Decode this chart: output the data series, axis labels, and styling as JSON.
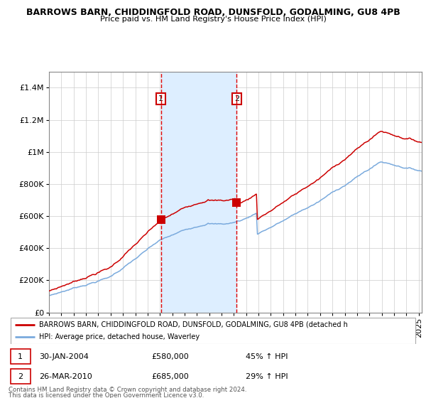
{
  "title": "BARROWS BARN, CHIDDINGFOLD ROAD, DUNSFOLD, GODALMING, GU8 4PB",
  "subtitle": "Price paid vs. HM Land Registry's House Price Index (HPI)",
  "sale1_label": "30-JAN-2004",
  "sale1_price_str": "£580,000",
  "sale1_hpi": "45% ↑ HPI",
  "sale2_label": "26-MAR-2010",
  "sale2_price_str": "£685,000",
  "sale2_hpi": "29% ↑ HPI",
  "legend_red": "BARROWS BARN, CHIDDINGFOLD ROAD, DUNSFOLD, GODALMING, GU8 4PB (detached h",
  "legend_blue": "HPI: Average price, detached house, Waverley",
  "footer1": "Contains HM Land Registry data © Crown copyright and database right 2024.",
  "footer2": "This data is licensed under the Open Government Licence v3.0.",
  "red_color": "#cc0000",
  "blue_color": "#7aaadd",
  "shade_color": "#ddeeff",
  "grid_color": "#cccccc",
  "ylim_max": 1400000,
  "ylim_min": 0,
  "sale1_price": 580000,
  "sale2_price": 685000
}
